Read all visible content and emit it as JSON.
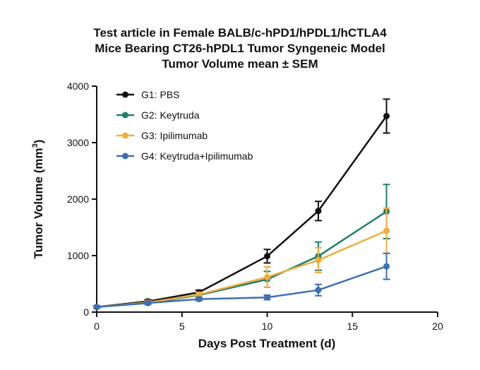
{
  "chart_data": {
    "type": "line",
    "title_lines": [
      "Test article in Female BALB/c-hPD1/hPDL1/hCTLA4",
      "Mice Bearing CT26-hPDL1 Tumor Syngeneic Model",
      "Tumor Volume mean ± SEM"
    ],
    "xlabel": "Days Post Treatment (d)",
    "ylabel_main": "Tumor Volume (mm",
    "ylabel_sup": "3",
    "ylabel_close": ")",
    "xlim": [
      0,
      20
    ],
    "ylim": [
      0,
      4000
    ],
    "xticks": [
      0,
      5,
      10,
      15,
      20
    ],
    "yticks": [
      0,
      1000,
      2000,
      3000,
      4000
    ],
    "xtick_labels": [
      "0",
      "5",
      "10",
      "15",
      "20"
    ],
    "ytick_labels": [
      "0",
      "1000",
      "2000",
      "3000",
      "4000"
    ],
    "legend_position": "top-left",
    "grid": false,
    "x": [
      0,
      3,
      6,
      10,
      13,
      17
    ],
    "series": [
      {
        "name": "G1: PBS",
        "color": "#111111",
        "values": [
          90,
          190,
          350,
          990,
          1790,
          3470
        ],
        "errors": [
          20,
          30,
          40,
          120,
          170,
          300
        ]
      },
      {
        "name": "G2: Keytruda",
        "color": "#1a7f6e",
        "values": [
          90,
          160,
          300,
          580,
          990,
          1780
        ],
        "errors": [
          20,
          25,
          40,
          140,
          250,
          480
        ]
      },
      {
        "name": "G3: Ipilimumab",
        "color": "#f0ad3c",
        "values": [
          90,
          170,
          310,
          620,
          920,
          1440
        ],
        "errors": [
          20,
          25,
          40,
          180,
          220,
          400
        ]
      },
      {
        "name": "G4: Keytruda+Ipilimumab",
        "color": "#3d6fb3",
        "values": [
          90,
          160,
          230,
          260,
          390,
          810
        ],
        "errors": [
          20,
          20,
          30,
          40,
          100,
          230
        ]
      }
    ]
  }
}
